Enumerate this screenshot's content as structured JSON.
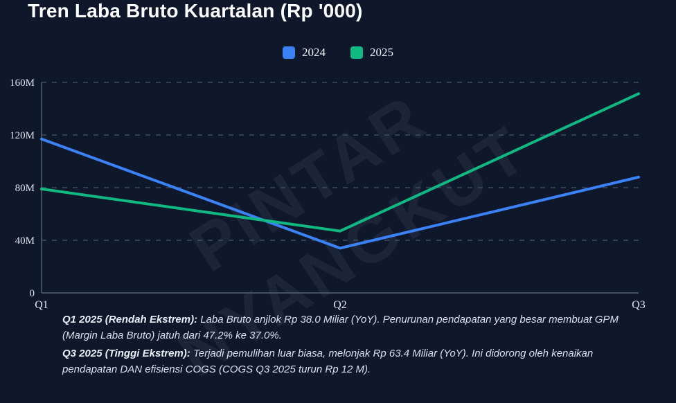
{
  "page": {
    "title": "Tren Laba Bruto Kuartalan (Rp '000)",
    "watermark": {
      "line1": "PINTAR",
      "line2": "NYANGKUT"
    }
  },
  "chart_data": {
    "type": "line",
    "title": "Tren Laba Bruto Kuartalan (Rp '000)",
    "categories": [
      "Q1",
      "Q2",
      "Q3"
    ],
    "series": [
      {
        "name": "2024",
        "color": "#3b82f6",
        "values": [
          117,
          34,
          88
        ]
      },
      {
        "name": "2025",
        "color": "#10b981",
        "values": [
          79,
          47,
          151.4
        ]
      }
    ],
    "y_tick_values": [
      0,
      40,
      80,
      120,
      160
    ],
    "y_tick_labels": [
      "0",
      "40M",
      "80M",
      "120M",
      "160M"
    ],
    "ylim": [
      0,
      160
    ],
    "grid": "horizontal-dashed",
    "legend_position": "top-center",
    "axis_color": "#566378",
    "grid_color": "#475569",
    "tick_label_color": "#dfe6f0"
  },
  "annotations": [
    {
      "label": "Q1 2025 (Rendah Ekstrem):",
      "text": " Laba Bruto anjlok Rp 38.0 Miliar (YoY). Penurunan pendapatan yang besar membuat GPM (Margin Laba Bruto) jatuh dari 47.2% ke 37.0%."
    },
    {
      "label": "Q3 2025 (Tinggi Ekstrem):",
      "text": " Terjadi pemulihan luar biasa, melonjak Rp 63.4 Miliar (YoY). Ini didorong oleh kenaikan pendapatan DAN efisiensi COGS (COGS Q3 2025 turun Rp 12 M)."
    }
  ],
  "colors": {
    "background": "#0f172a",
    "title": "#fafcfe",
    "annotation_text": "#d9e0ec"
  }
}
